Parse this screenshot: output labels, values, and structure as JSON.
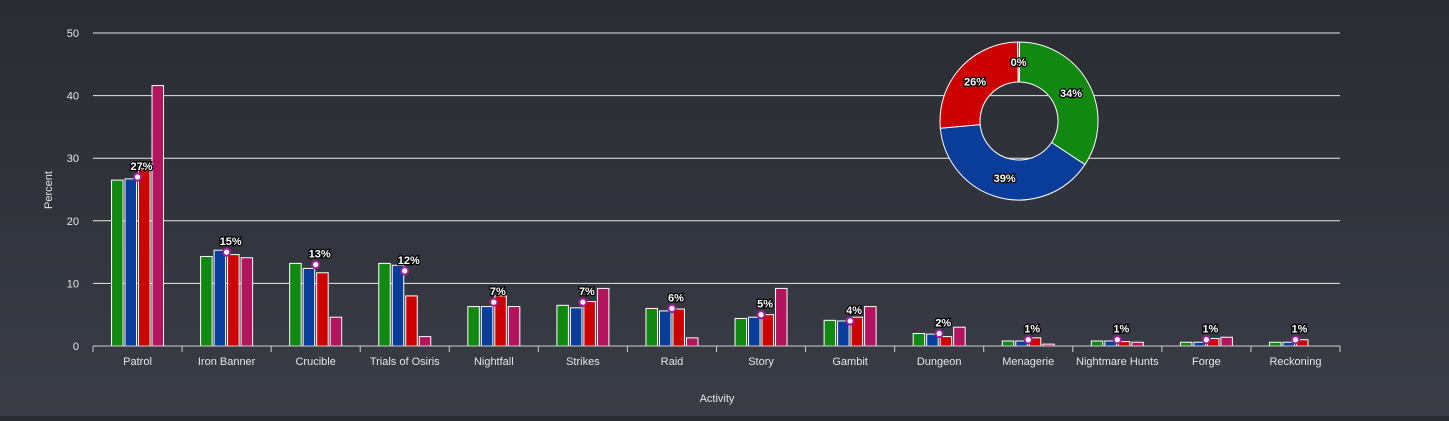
{
  "chart_data": [
    {
      "type": "bar",
      "xlabel": "Activity",
      "ylabel": "Percent",
      "ylim": [
        0,
        50
      ],
      "yticks": [
        0,
        10,
        20,
        30,
        40,
        50
      ],
      "grid": true,
      "categories": [
        "Patrol",
        "Iron Banner",
        "Crucible",
        "Trials of Osiris",
        "Nightfall",
        "Strikes",
        "Raid",
        "Story",
        "Gambit",
        "Dungeon",
        "Menagerie",
        "Nightmare Hunts",
        "Forge",
        "Reckoning"
      ],
      "series": [
        {
          "color": "#118811",
          "values": [
            26.5,
            14.3,
            13.2,
            13.2,
            6.3,
            6.5,
            6.0,
            4.4,
            4.1,
            2.0,
            0.8,
            0.8,
            0.6,
            0.6
          ]
        },
        {
          "color": "#0a3d9a",
          "values": [
            26.7,
            15.3,
            12.4,
            12.9,
            6.3,
            6.1,
            5.6,
            4.6,
            4.0,
            1.9,
            0.8,
            0.8,
            0.6,
            0.6
          ]
        },
        {
          "color": "#cc0000",
          "values": [
            28.3,
            14.6,
            11.7,
            8.0,
            8.0,
            7.1,
            5.9,
            5.0,
            4.6,
            1.5,
            1.3,
            0.7,
            1.2,
            1.0
          ]
        },
        {
          "color": "#b3145e",
          "values": [
            41.6,
            14.1,
            4.6,
            1.5,
            6.3,
            9.2,
            1.3,
            9.2,
            6.3,
            3.0,
            0.3,
            0.6,
            1.4,
            0.0
          ]
        }
      ],
      "average_markers": [
        27,
        15,
        13,
        12,
        7,
        7,
        6,
        5,
        4,
        2,
        1,
        1,
        1,
        1
      ],
      "average_labels": [
        "27%",
        "15%",
        "13%",
        "12%",
        "7%",
        "7%",
        "6%",
        "5%",
        "4%",
        "2%",
        "1%",
        "1%",
        "1%",
        "1%"
      ],
      "marker_fill": "#ffffff",
      "marker_stroke": "#a0209a"
    },
    {
      "type": "pie",
      "donut": true,
      "slices": [
        {
          "label": "34%",
          "value": 34,
          "color": "#118811"
        },
        {
          "label": "39%",
          "value": 39,
          "color": "#0a3d9a"
        },
        {
          "label": "26%",
          "value": 26,
          "color": "#cc0000"
        },
        {
          "label": "0%",
          "value": 0.4,
          "color": "#b3145e"
        }
      ]
    }
  ]
}
